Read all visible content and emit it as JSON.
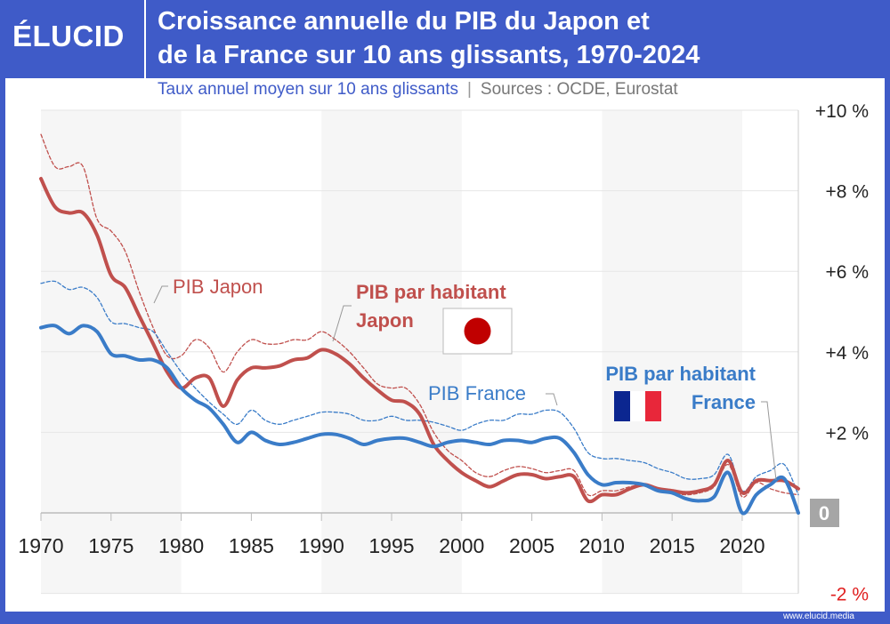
{
  "header": {
    "logo": "ÉLUCID",
    "title_line1": "Croissance annuelle du PIB du Japon et",
    "title_line2": "de la France sur 10 ans glissants, 1970-2024",
    "subtitle": "Taux annuel moyen sur 10 ans glissants",
    "sources": "Sources : OCDE, Eurostat",
    "separator": "|"
  },
  "footer": {
    "url": "www.elucid.media"
  },
  "colors": {
    "frame": "#3f5bc8",
    "japan": "#c0504d",
    "france": "#3a7cc8",
    "negative": "#e02020"
  },
  "chart_data": {
    "type": "line",
    "xlim": [
      1970,
      2024
    ],
    "ylim": [
      -2,
      10
    ],
    "x_ticks": [
      1970,
      1975,
      1980,
      1985,
      1990,
      1995,
      2000,
      2005,
      2010,
      2015,
      2020
    ],
    "y_ticks": [
      {
        "v": 10,
        "label": "+10 %"
      },
      {
        "v": 8,
        "label": "+8 %"
      },
      {
        "v": 6,
        "label": "+6 %"
      },
      {
        "v": 4,
        "label": "+4 %"
      },
      {
        "v": 2,
        "label": "+2 %"
      },
      {
        "v": 0,
        "label": "0"
      },
      {
        "v": -2,
        "label": "-2 %"
      }
    ],
    "x": [
      1970,
      1971,
      1972,
      1973,
      1974,
      1975,
      1976,
      1977,
      1978,
      1979,
      1980,
      1981,
      1982,
      1983,
      1984,
      1985,
      1986,
      1987,
      1988,
      1989,
      1990,
      1991,
      1992,
      1993,
      1994,
      1995,
      1996,
      1997,
      1998,
      1999,
      2000,
      2001,
      2002,
      2003,
      2004,
      2005,
      2006,
      2007,
      2008,
      2009,
      2010,
      2011,
      2012,
      2013,
      2014,
      2015,
      2016,
      2017,
      2018,
      2019,
      2020,
      2021,
      2022,
      2023,
      2024
    ],
    "series": [
      {
        "name": "PIB Japon",
        "style": "dashed",
        "color": "#c0504d",
        "values": [
          9.4,
          8.6,
          8.6,
          8.6,
          7.3,
          7.0,
          6.5,
          5.5,
          4.6,
          3.9,
          3.9,
          4.3,
          4.1,
          3.5,
          4.0,
          4.3,
          4.2,
          4.2,
          4.3,
          4.3,
          4.5,
          4.3,
          4.0,
          3.6,
          3.2,
          3.1,
          3.1,
          2.7,
          2.0,
          1.55,
          1.3,
          1.0,
          0.9,
          1.05,
          1.15,
          1.1,
          1.0,
          1.05,
          1.05,
          0.45,
          0.55,
          0.55,
          0.65,
          0.7,
          0.6,
          0.5,
          0.45,
          0.5,
          0.65,
          1.2,
          0.4,
          0.75,
          0.6,
          0.5,
          0.45
        ]
      },
      {
        "name": "PIB France",
        "style": "dashed",
        "color": "#3a7cc8",
        "values": [
          5.7,
          5.75,
          5.55,
          5.6,
          5.35,
          4.75,
          4.7,
          4.6,
          4.5,
          4.0,
          3.5,
          3.1,
          2.75,
          2.45,
          2.2,
          2.55,
          2.3,
          2.2,
          2.3,
          2.4,
          2.5,
          2.5,
          2.45,
          2.3,
          2.3,
          2.4,
          2.3,
          2.3,
          2.25,
          2.15,
          2.05,
          2.2,
          2.3,
          2.3,
          2.45,
          2.45,
          2.55,
          2.5,
          2.1,
          1.5,
          1.35,
          1.35,
          1.3,
          1.25,
          1.1,
          1.0,
          0.85,
          0.85,
          0.95,
          1.45,
          0.55,
          0.9,
          1.05,
          1.2,
          0.45
        ]
      },
      {
        "name": "PIB par habitant Japon",
        "style": "solid",
        "color": "#c0504d",
        "values": [
          8.3,
          7.6,
          7.45,
          7.45,
          6.9,
          5.9,
          5.6,
          4.9,
          4.2,
          3.5,
          3.1,
          3.35,
          3.35,
          2.65,
          3.3,
          3.6,
          3.6,
          3.65,
          3.8,
          3.85,
          4.05,
          3.95,
          3.7,
          3.35,
          3.05,
          2.8,
          2.75,
          2.45,
          1.7,
          1.3,
          1.0,
          0.8,
          0.65,
          0.8,
          0.95,
          0.95,
          0.85,
          0.9,
          0.9,
          0.3,
          0.45,
          0.45,
          0.6,
          0.7,
          0.6,
          0.55,
          0.5,
          0.55,
          0.7,
          1.3,
          0.5,
          0.8,
          0.8,
          0.8,
          0.6
        ]
      },
      {
        "name": "PIB par habitant France",
        "style": "solid",
        "color": "#3a7cc8",
        "values": [
          4.6,
          4.65,
          4.45,
          4.65,
          4.5,
          3.95,
          3.9,
          3.8,
          3.8,
          3.6,
          3.1,
          2.8,
          2.6,
          2.2,
          1.75,
          2.0,
          1.8,
          1.7,
          1.75,
          1.85,
          1.95,
          1.95,
          1.85,
          1.7,
          1.8,
          1.85,
          1.85,
          1.75,
          1.65,
          1.75,
          1.8,
          1.75,
          1.7,
          1.8,
          1.8,
          1.75,
          1.85,
          1.85,
          1.5,
          0.95,
          0.7,
          0.75,
          0.75,
          0.7,
          0.55,
          0.5,
          0.35,
          0.3,
          0.4,
          1.0,
          0.0,
          0.45,
          0.7,
          0.85,
          0.0
        ]
      }
    ],
    "annotations": {
      "japon_gdp": "PIB Japon",
      "france_gdp": "PIB France",
      "japon_pc_1": "PIB par habitant",
      "japon_pc_2": "Japon",
      "france_pc_1": "PIB par habitant",
      "france_pc_2": "France"
    },
    "grid": true
  }
}
